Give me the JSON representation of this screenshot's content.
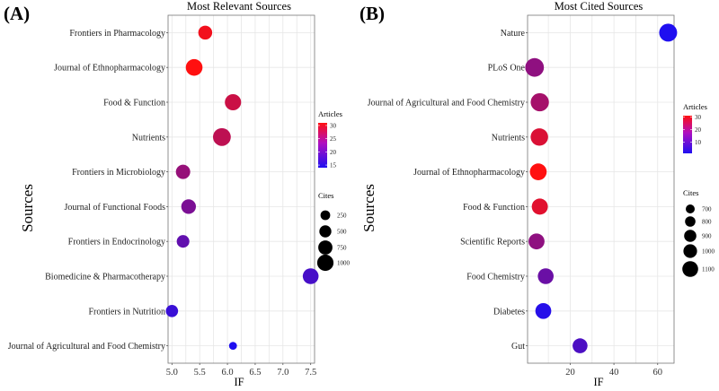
{
  "chart_data": [
    {
      "panel_label": "(A)",
      "type": "scatter",
      "title": "Most Relevant Sources",
      "xlabel": "IF",
      "ylabel": "Sources",
      "xlim": [
        4.93,
        7.57
      ],
      "xticks": [
        5.0,
        5.5,
        6.0,
        6.5,
        7.0,
        7.5
      ],
      "xtick_labels": [
        "5.0",
        "5.5",
        "6.0",
        "6.5",
        "7.0",
        "7.5"
      ],
      "categories": [
        "Frontiers in Pharmacology",
        "Journal of Ethnopharmacology",
        "Food & Function",
        "Nutrients",
        "Frontiers in Microbiology",
        "Journal of Functional Foods",
        "Frontiers in Endocrinology",
        "Biomedicine & Pharmacotherapy",
        "Frontiers in Nutrition",
        "Journal of Agricultural and Food Chemistry"
      ],
      "points": [
        {
          "source": "Frontiers in Pharmacology",
          "IF": 5.6,
          "articles": 30,
          "cites": 480
        },
        {
          "source": "Journal of Ethnopharmacology",
          "IF": 5.4,
          "articles": 31,
          "cites": 820
        },
        {
          "source": "Food & Function",
          "IF": 6.1,
          "articles": 27,
          "cites": 760
        },
        {
          "source": "Nutrients",
          "IF": 5.9,
          "articles": 26,
          "cites": 980
        },
        {
          "source": "Frontiers in Microbiology",
          "IF": 5.2,
          "articles": 23,
          "cites": 530
        },
        {
          "source": "Journal of Functional Foods",
          "IF": 5.3,
          "articles": 21,
          "cites": 560
        },
        {
          "source": "Frontiers in Endocrinology",
          "IF": 5.2,
          "articles": 19,
          "cites": 360
        },
        {
          "source": "Biomedicine & Pharmacotherapy",
          "IF": 7.5,
          "articles": 17,
          "cites": 700
        },
        {
          "source": "Frontiers in Nutrition",
          "IF": 5.0,
          "articles": 16,
          "cites": 330
        },
        {
          "source": "Journal of Agricultural and Food Chemistry",
          "IF": 6.1,
          "articles": 14,
          "cites": 90
        }
      ],
      "legend_articles": {
        "title": "Articles",
        "min": 14,
        "max": 31,
        "ticks": [
          15,
          20,
          25,
          30
        ],
        "colors": [
          "#1f0ff0",
          "#ff1010"
        ]
      },
      "legend_cites": {
        "title": "Cites",
        "values": [
          250,
          500,
          750,
          1000
        ],
        "labels": [
          "250",
          "500",
          "750",
          "1000"
        ]
      }
    },
    {
      "panel_label": "(B)",
      "type": "scatter",
      "title": "Most Cited Sources",
      "xlabel": "IF",
      "ylabel": "Sources",
      "xlim": [
        0.5,
        67.5
      ],
      "xticks": [
        20,
        40,
        60
      ],
      "xtick_labels": [
        "20",
        "40",
        "60"
      ],
      "categories": [
        "Nature",
        "PLoS One",
        "Journal of Agricultural and Food Chemistry",
        "Nutrients",
        "Journal of Ethnopharmacology",
        "Food & Function",
        "Scientific Reports",
        "Food Chemistry",
        "Diabetes",
        "Gut"
      ],
      "points": [
        {
          "source": "Nature",
          "IF": 64.8,
          "articles": 1,
          "cites": 1000
        },
        {
          "source": "PLoS One",
          "IF": 3.7,
          "articles": 16,
          "cites": 1120
        },
        {
          "source": "Journal of Agricultural and Food Chemistry",
          "IF": 6.1,
          "articles": 19,
          "cites": 1050
        },
        {
          "source": "Nutrients",
          "IF": 5.9,
          "articles": 26,
          "cites": 930
        },
        {
          "source": "Journal of Ethnopharmacology",
          "IF": 5.4,
          "articles": 31,
          "cites": 830
        },
        {
          "source": "Food & Function",
          "IF": 6.1,
          "articles": 27,
          "cites": 740
        },
        {
          "source": "Scientific Reports",
          "IF": 4.6,
          "articles": 16,
          "cites": 720
        },
        {
          "source": "Food Chemistry",
          "IF": 8.8,
          "articles": 11,
          "cites": 700
        },
        {
          "source": "Diabetes",
          "IF": 7.7,
          "articles": 2,
          "cites": 710
        },
        {
          "source": "Gut",
          "IF": 24.5,
          "articles": 7,
          "cites": 590
        }
      ],
      "legend_articles": {
        "title": "Articles",
        "min": 1,
        "max": 31,
        "ticks": [
          10,
          20,
          30
        ],
        "colors": [
          "#1f0ff0",
          "#ff1010"
        ]
      },
      "legend_cites": {
        "title": "Cites",
        "values": [
          700,
          800,
          900,
          1000,
          1100
        ],
        "labels": [
          "700",
          "800",
          "900",
          "1000",
          "1100"
        ]
      }
    }
  ]
}
